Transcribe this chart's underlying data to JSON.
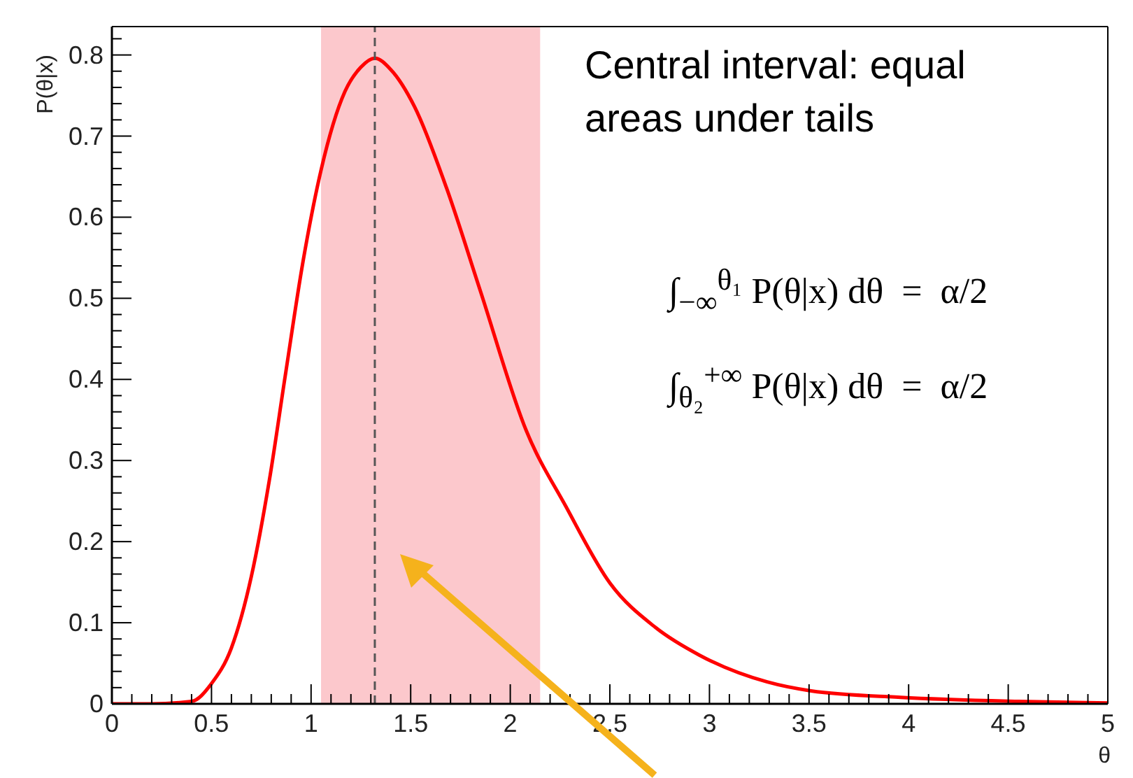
{
  "chart_data": {
    "type": "line",
    "xlabel": "θ",
    "ylabel": "P(θ|x)",
    "x": [
      0,
      0.2,
      0.4,
      0.5,
      0.6,
      0.7,
      0.79,
      0.87,
      0.96,
      1.05,
      1.17,
      1.25,
      1.32,
      1.4,
      1.52,
      1.68,
      1.85,
      2.08,
      2.28,
      2.5,
      2.73,
      2.95,
      3.29,
      3.51,
      3.96,
      4.55,
      5
    ],
    "series": [
      {
        "color": "#ff0000",
        "values": [
          0,
          0,
          0.003,
          0.025,
          0.069,
          0.157,
          0.275,
          0.404,
          0.546,
          0.658,
          0.755,
          0.785,
          0.796,
          0.782,
          0.736,
          0.636,
          0.509,
          0.337,
          0.243,
          0.149,
          0.094,
          0.06,
          0.027,
          0.016,
          0.008,
          0.003,
          0.001
        ]
      }
    ],
    "marker": "none",
    "line_style": "solid",
    "xlim": [
      0,
      5
    ],
    "ylim": [
      0,
      0.835
    ],
    "xticks": [
      0,
      {
        "value": 0.1,
        "label": null
      },
      {
        "value": 0.2,
        "label": null
      },
      {
        "value": 0.3,
        "label": null
      },
      {
        "value": 0.4,
        "label": null
      },
      0.5,
      {
        "value": 0.6,
        "label": null
      },
      {
        "value": 0.7,
        "label": null
      },
      {
        "value": 0.8,
        "label": null
      },
      {
        "value": 0.9,
        "label": null
      },
      1,
      {
        "value": 1.1,
        "label": null
      },
      {
        "value": 1.2,
        "label": null
      },
      {
        "value": 1.3,
        "label": null
      },
      {
        "value": 1.4,
        "label": null
      },
      1.5,
      {
        "value": 1.6,
        "label": null
      },
      {
        "value": 1.7,
        "label": null
      },
      {
        "value": 1.8,
        "label": null
      },
      {
        "value": 1.9,
        "label": null
      },
      2,
      {
        "value": 2.1,
        "label": null
      },
      {
        "value": 2.2,
        "label": null
      },
      {
        "value": 2.3,
        "label": null
      },
      {
        "value": 2.4,
        "label": null
      },
      2.5,
      {
        "value": 2.6,
        "label": null
      },
      {
        "value": 2.7,
        "label": null
      },
      {
        "value": 2.8,
        "label": null
      },
      {
        "value": 2.9,
        "label": null
      },
      3,
      {
        "value": 3.1,
        "label": null
      },
      {
        "value": 3.2,
        "label": null
      },
      {
        "value": 3.3,
        "label": null
      },
      {
        "value": 3.4,
        "label": null
      },
      3.5,
      {
        "value": 3.6,
        "label": null
      },
      {
        "value": 3.7,
        "label": null
      },
      {
        "value": 3.8,
        "label": null
      },
      {
        "value": 3.9,
        "label": null
      },
      4,
      {
        "value": 4.1,
        "label": null
      },
      {
        "value": 4.2,
        "label": null
      },
      {
        "value": 4.3,
        "label": null
      },
      {
        "value": 4.4,
        "label": null
      },
      4.5,
      {
        "value": 4.6,
        "label": null
      },
      {
        "value": 4.7,
        "label": null
      },
      {
        "value": 4.8,
        "label": null
      },
      {
        "value": 4.9,
        "label": null
      },
      5
    ],
    "yticks": [
      0,
      {
        "value": 0.02,
        "label": null
      },
      {
        "value": 0.04,
        "label": null
      },
      {
        "value": 0.06,
        "label": null
      },
      {
        "value": 0.08,
        "label": null
      },
      0.1,
      {
        "value": 0.12,
        "label": null
      },
      {
        "value": 0.14,
        "label": null
      },
      {
        "value": 0.16,
        "label": null
      },
      {
        "value": 0.18,
        "label": null
      },
      0.2,
      {
        "value": 0.22,
        "label": null
      },
      {
        "value": 0.24,
        "label": null
      },
      {
        "value": 0.26,
        "label": null
      },
      {
        "value": 0.28,
        "label": null
      },
      0.3,
      {
        "value": 0.32,
        "label": null
      },
      {
        "value": 0.34,
        "label": null
      },
      {
        "value": 0.36,
        "label": null
      },
      {
        "value": 0.38,
        "label": null
      },
      0.4,
      {
        "value": 0.42,
        "label": null
      },
      {
        "value": 0.44,
        "label": null
      },
      {
        "value": 0.46,
        "label": null
      },
      {
        "value": 0.48,
        "label": null
      },
      0.5,
      {
        "value": 0.52,
        "label": null
      },
      {
        "value": 0.54,
        "label": null
      },
      {
        "value": 0.56,
        "label": null
      },
      {
        "value": 0.58,
        "label": null
      },
      0.6,
      {
        "value": 0.62,
        "label": null
      },
      {
        "value": 0.64,
        "label": null
      },
      {
        "value": 0.66,
        "label": null
      },
      {
        "value": 0.68,
        "label": null
      },
      0.7,
      {
        "value": 0.72,
        "label": null
      },
      {
        "value": 0.74,
        "label": null
      },
      {
        "value": 0.76,
        "label": null
      },
      {
        "value": 0.78,
        "label": null
      },
      0.8,
      {
        "value": 0.82,
        "label": null
      }
    ],
    "bands": [
      {
        "axis": "x",
        "from": 1.05,
        "to": 2.15,
        "color": "#fcc8cc"
      }
    ],
    "ref_lines": [
      {
        "axis": "x",
        "value": 1.32,
        "color": "#555555",
        "line_style": "dashed"
      }
    ],
    "annotations": [
      "Central interval: equal areas under tails",
      "∫$_{−∞}$$^{θ₁}$ P(θ|x) dθ  =  α/2",
      "∫$_{θ₂}$$^{+∞}$ P(θ|x) dθ  =  α/2"
    ]
  }
}
